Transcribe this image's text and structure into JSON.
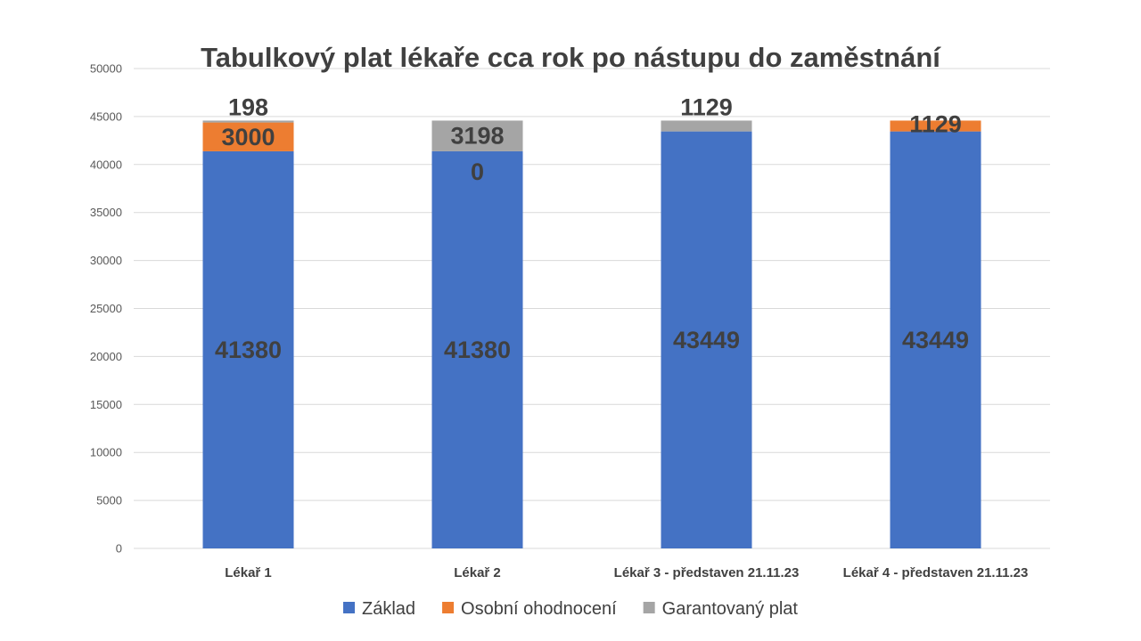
{
  "chart_data": {
    "type": "bar",
    "stacked": true,
    "title": "Tabulkový plat lékaře cca rok po nástupu do zaměstnání",
    "xlabel": "",
    "ylabel": "",
    "ylim": [
      0,
      50000
    ],
    "yticks": [
      "0",
      "5000",
      "10000",
      "15000",
      "20000",
      "25000",
      "30000",
      "35000",
      "40000",
      "45000",
      "50000"
    ],
    "grid": true,
    "legend_position": "bottom",
    "categories": [
      "Lékař 1",
      "Lékař 2",
      "Lékař 3 - představen 21.11.23",
      "Lékař 4 - představen 21.11.23"
    ],
    "series": [
      {
        "name": "Základ",
        "color": "#4472c4",
        "values": [
          41380,
          41380,
          43449,
          43449
        ],
        "labels": [
          "41380",
          "41380",
          "43449",
          "43449"
        ]
      },
      {
        "name": "Osobní ohodnocení",
        "color": "#ed7d31",
        "values": [
          3000,
          0,
          0,
          1129
        ],
        "labels": [
          "3000",
          "0",
          "",
          "1129"
        ]
      },
      {
        "name": "Garantovaný plat",
        "color": "#a5a5a5",
        "values": [
          198,
          3198,
          1129,
          0
        ],
        "labels": [
          "198",
          "3198",
          "1129",
          ""
        ]
      }
    ]
  }
}
